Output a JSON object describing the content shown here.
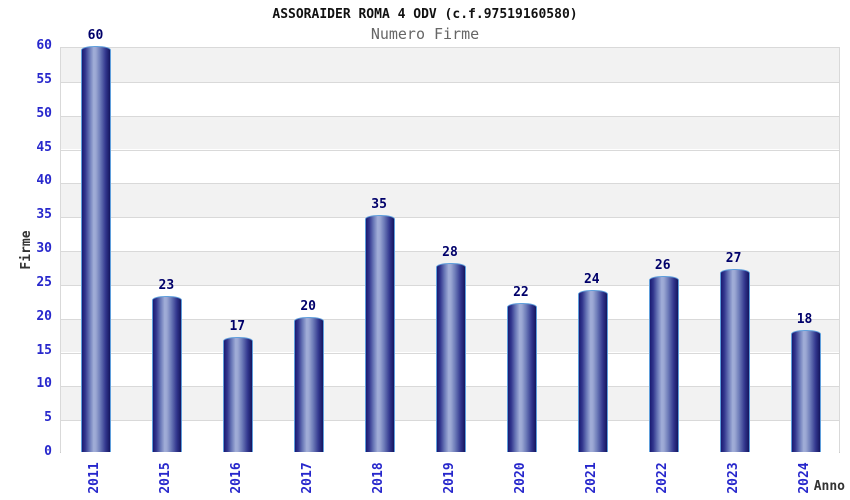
{
  "chart_data": {
    "type": "bar",
    "title": "ASSORAIDER ROMA 4 ODV (c.f.97519160580)",
    "subtitle": "Numero Firme",
    "xlabel": "Anno",
    "ylabel": "Firme",
    "categories": [
      "2011",
      "2015",
      "2016",
      "2017",
      "2018",
      "2019",
      "2020",
      "2021",
      "2022",
      "2023",
      "2024"
    ],
    "values": [
      60,
      23,
      17,
      20,
      35,
      28,
      22,
      24,
      26,
      27,
      18
    ],
    "ylim": [
      0,
      60
    ],
    "ytick_step": 5,
    "legend": "none",
    "grid": "horizontal gridlines every 5 units with alternating gray/white bands",
    "colors": {
      "background": "#ffffff",
      "band_gray": "#f2f2f2",
      "gridline": "#d9d9d9",
      "bar_edge_dark": "#1a1a72",
      "bar_mid_dark": "#33388f",
      "bar_highlight": "#a2aed8",
      "bar_outline": "#5f9fdc",
      "tick_label": "#2727cc",
      "value_label": "#00006a",
      "title": "#111111",
      "subtitle": "#666666",
      "axis_title": "#333333"
    }
  }
}
